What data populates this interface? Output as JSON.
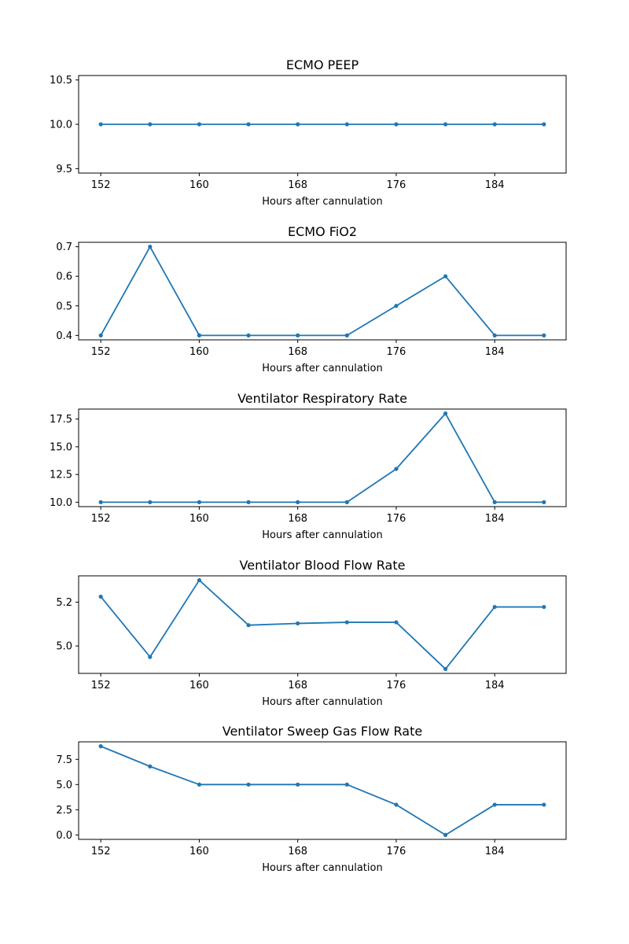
{
  "chart_data": [
    {
      "type": "line",
      "title": "ECMO PEEP",
      "xlabel": "Hours after cannulation",
      "ylabel": "",
      "x": [
        152,
        156,
        160,
        164,
        168,
        172,
        176,
        180,
        184,
        188
      ],
      "values": [
        10,
        10,
        10,
        10,
        10,
        10,
        10,
        10,
        10,
        10
      ],
      "xticks": [
        152,
        160,
        168,
        176,
        184
      ],
      "yticks": [
        9.5,
        10.0,
        10.5
      ],
      "ytick_labels": [
        "9.5",
        "10.0",
        "10.5"
      ],
      "xlim": [
        150.2,
        189.8
      ],
      "ylim": [
        9.45,
        10.55
      ],
      "color": "#1f77b4",
      "grid": false
    },
    {
      "type": "line",
      "title": "ECMO FiO2",
      "xlabel": "Hours after cannulation",
      "ylabel": "",
      "x": [
        152,
        156,
        160,
        164,
        168,
        172,
        176,
        180,
        184,
        188
      ],
      "values": [
        0.4,
        0.7,
        0.4,
        0.4,
        0.4,
        0.4,
        0.5,
        0.6,
        0.4,
        0.4
      ],
      "xticks": [
        152,
        160,
        168,
        176,
        184
      ],
      "yticks": [
        0.4,
        0.5,
        0.6,
        0.7
      ],
      "ytick_labels": [
        "0.4",
        "0.5",
        "0.6",
        "0.7"
      ],
      "xlim": [
        150.2,
        189.8
      ],
      "ylim": [
        0.385,
        0.715
      ],
      "color": "#1f77b4",
      "grid": false
    },
    {
      "type": "line",
      "title": "Ventilator Respiratory Rate",
      "xlabel": "Hours after cannulation",
      "ylabel": "",
      "x": [
        152,
        156,
        160,
        164,
        168,
        172,
        176,
        180,
        184,
        188
      ],
      "values": [
        10,
        10,
        10,
        10,
        10,
        10,
        13,
        18,
        10,
        10
      ],
      "xticks": [
        152,
        160,
        168,
        176,
        184
      ],
      "yticks": [
        10.0,
        12.5,
        15.0,
        17.5
      ],
      "ytick_labels": [
        "10.0",
        "12.5",
        "15.0",
        "17.5"
      ],
      "xlim": [
        150.2,
        189.8
      ],
      "ylim": [
        9.6,
        18.4
      ],
      "color": "#1f77b4",
      "grid": false
    },
    {
      "type": "line",
      "title": "Ventilator Blood Flow Rate",
      "xlabel": "Hours after cannulation",
      "ylabel": "",
      "x": [
        152,
        156,
        160,
        164,
        168,
        172,
        176,
        180,
        184,
        188
      ],
      "values": [
        5.225,
        4.95,
        5.3,
        5.095,
        5.103,
        5.108,
        5.108,
        4.895,
        5.178,
        5.178
      ],
      "xticks": [
        152,
        160,
        168,
        176,
        184
      ],
      "yticks": [
        5.0,
        5.2
      ],
      "ytick_labels": [
        "5.0",
        "5.2"
      ],
      "xlim": [
        150.2,
        189.8
      ],
      "ylim": [
        4.875,
        5.32
      ],
      "color": "#1f77b4",
      "grid": false
    },
    {
      "type": "line",
      "title": "Ventilator Sweep Gas Flow Rate",
      "xlabel": "Hours after cannulation",
      "ylabel": "",
      "x": [
        152,
        156,
        160,
        164,
        168,
        172,
        176,
        180,
        184,
        188
      ],
      "values": [
        8.8,
        6.8,
        5.0,
        5.0,
        5.0,
        5.0,
        3.0,
        0.0,
        3.0,
        3.0
      ],
      "xticks": [
        152,
        160,
        168,
        176,
        184
      ],
      "yticks": [
        0.0,
        2.5,
        5.0,
        7.5
      ],
      "ytick_labels": [
        "0.0",
        "2.5",
        "5.0",
        "7.5"
      ],
      "xlim": [
        150.2,
        189.8
      ],
      "ylim": [
        -0.44,
        9.24
      ],
      "color": "#1f77b4",
      "grid": false
    }
  ]
}
